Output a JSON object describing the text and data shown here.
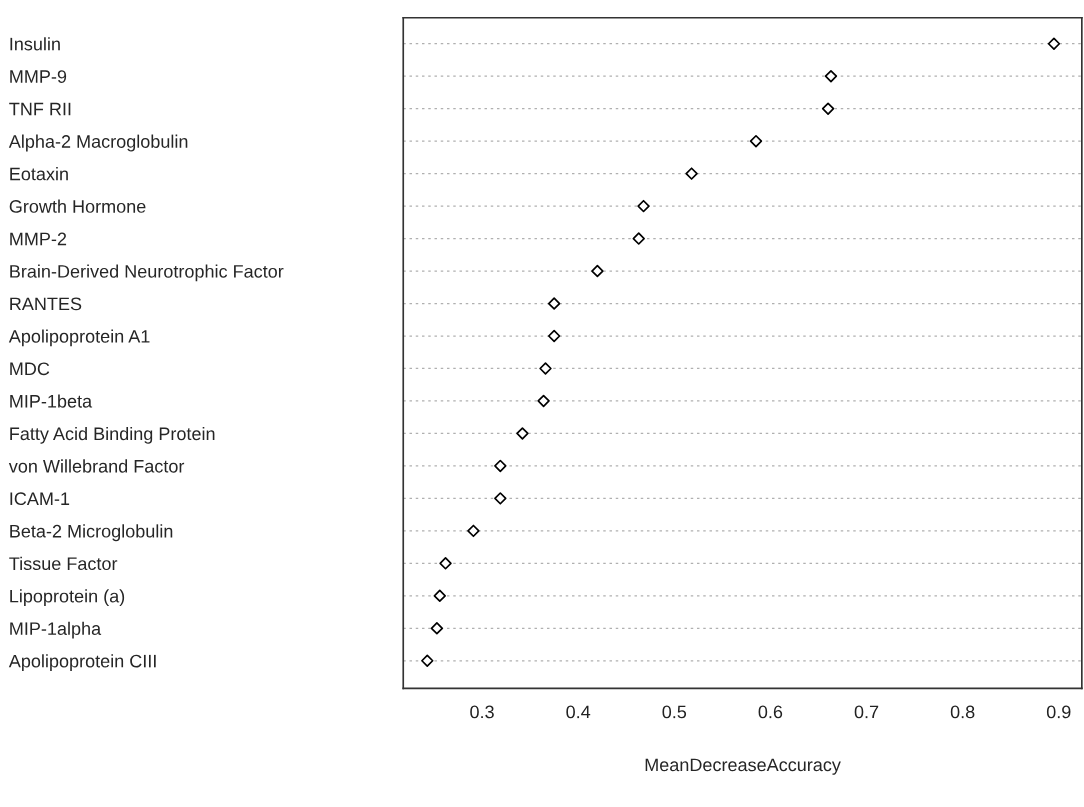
{
  "chart_data": {
    "type": "scatter",
    "orientation": "horizontal",
    "xlabel": "MeanDecreaseAccuracy",
    "categories": [
      "Insulin",
      "MMP-9",
      "TNF RII",
      "Alpha-2 Macroglobulin",
      "Eotaxin",
      "Growth Hormone",
      "MMP-2",
      "Brain-Derived Neurotrophic Factor",
      "RANTES",
      "Apolipoprotein A1",
      "MDC",
      "MIP-1beta",
      "Fatty Acid Binding Protein",
      "von Willebrand Factor",
      "ICAM-1",
      "Beta-2 Microglobulin",
      "Tissue Factor",
      "Lipoprotein (a)",
      "MIP-1alpha",
      "Apolipoprotein CIII"
    ],
    "values": [
      0.895,
      0.663,
      0.66,
      0.585,
      0.518,
      0.468,
      0.463,
      0.42,
      0.375,
      0.375,
      0.366,
      0.364,
      0.342,
      0.319,
      0.319,
      0.291,
      0.262,
      0.256,
      0.253,
      0.243
    ],
    "color": "#000000",
    "xlim": [
      0.218,
      0.924
    ],
    "xticks": [
      0.3,
      0.4,
      0.5,
      0.6,
      0.7,
      0.8,
      0.9
    ],
    "grid": "y",
    "marker": "diamond"
  }
}
